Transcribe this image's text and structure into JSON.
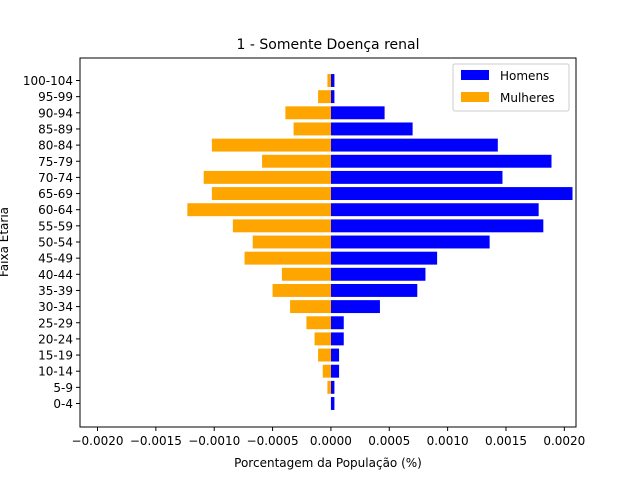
{
  "chart_data": {
    "type": "bar",
    "orientation": "horizontal",
    "title": "1 - Somente Doença renal",
    "xlabel": "Porcentagem da População (%)",
    "ylabel": "Faixa Etária",
    "xlim": [
      -0.00215,
      0.0021
    ],
    "x_ticks": [
      -0.002,
      -0.0015,
      -0.001,
      -0.0005,
      0.0,
      0.0005,
      0.001,
      0.0015,
      0.002
    ],
    "x_tick_labels": [
      "−0.0020",
      "−0.0015",
      "−0.0010",
      "−0.0005",
      "0.0000",
      "0.0005",
      "0.0010",
      "0.0015",
      "0.0020"
    ],
    "categories": [
      "0-4",
      "5-9",
      "10-14",
      "15-19",
      "20-24",
      "25-29",
      "30-34",
      "35-39",
      "40-44",
      "45-49",
      "50-54",
      "55-59",
      "60-64",
      "65-69",
      "70-74",
      "75-79",
      "80-84",
      "85-89",
      "90-94",
      "95-99",
      "100-104"
    ],
    "series": [
      {
        "name": "Homens",
        "color": "#0000ff",
        "values": [
          3e-05,
          3e-05,
          7e-05,
          7e-05,
          0.00011,
          0.00011,
          0.00042,
          0.00074,
          0.00081,
          0.00091,
          0.00136,
          0.00182,
          0.00178,
          0.00207,
          0.00147,
          0.00189,
          0.00143,
          0.0007,
          0.00046,
          3e-05,
          3e-05
        ]
      },
      {
        "name": "Mulheres",
        "color": "#ffa500",
        "values": [
          0.0,
          -3e-05,
          -7e-05,
          -0.00011,
          -0.00014,
          -0.00021,
          -0.00035,
          -0.0005,
          -0.00042,
          -0.00074,
          -0.00067,
          -0.00084,
          -0.00123,
          -0.00102,
          -0.00109,
          -0.00059,
          -0.00102,
          -0.00032,
          -0.00039,
          -0.00011,
          -3e-05
        ]
      }
    ],
    "legend": {
      "position": "top-right",
      "entries": [
        "Homens",
        "Mulheres"
      ]
    },
    "grid": false
  }
}
